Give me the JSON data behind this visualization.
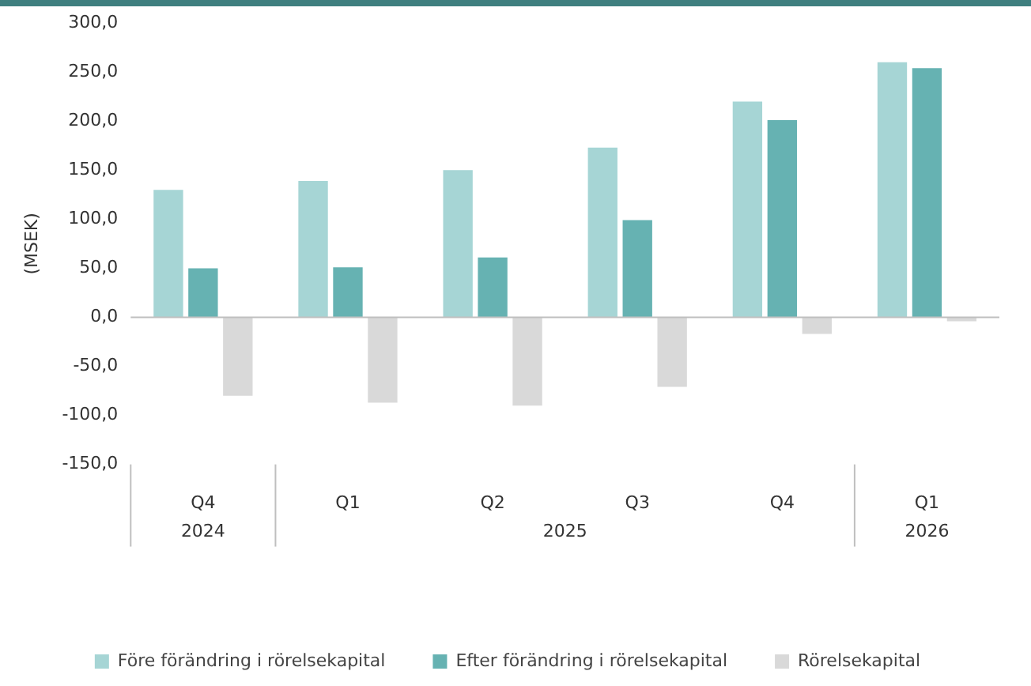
{
  "chart_data": {
    "type": "bar",
    "ylabel": "(MSEK)",
    "categories": [
      "Q4",
      "Q1",
      "Q2",
      "Q3",
      "Q4",
      "Q1"
    ],
    "series": [
      {
        "name": "Före förändring i rörelsekapital",
        "color": "#a6d5d5",
        "values": [
          130,
          139,
          150,
          173,
          220,
          260
        ]
      },
      {
        "name": "Efter förändring i rörelsekapital",
        "color": "#66b2b2",
        "values": [
          50,
          51,
          61,
          99,
          201,
          254
        ]
      },
      {
        "name": "Rörelsekapital",
        "color": "#d9d9d9",
        "values": [
          -80,
          -87,
          -90,
          -71,
          -17,
          -4
        ]
      }
    ],
    "ylim": [
      -150,
      300
    ],
    "yticks": [
      {
        "value": -150,
        "label": "-150,0"
      },
      {
        "value": -100,
        "label": "-100,0"
      },
      {
        "value": -50,
        "label": "-50,0"
      },
      {
        "value": 0,
        "label": "0,0"
      },
      {
        "value": 50,
        "label": "50,0"
      },
      {
        "value": 100,
        "label": "100,0"
      },
      {
        "value": 150,
        "label": "150,0"
      },
      {
        "value": 200,
        "label": "200,0"
      },
      {
        "value": 250,
        "label": "250,0"
      },
      {
        "value": 300,
        "label": "300,0"
      }
    ],
    "annotations": [
      "2024",
      "2025",
      "2026"
    ],
    "ref_lines": [
      {
        "axis": "y",
        "value": 0,
        "color": "#bfbfbf"
      }
    ],
    "grid": false,
    "legend": "bottom"
  }
}
